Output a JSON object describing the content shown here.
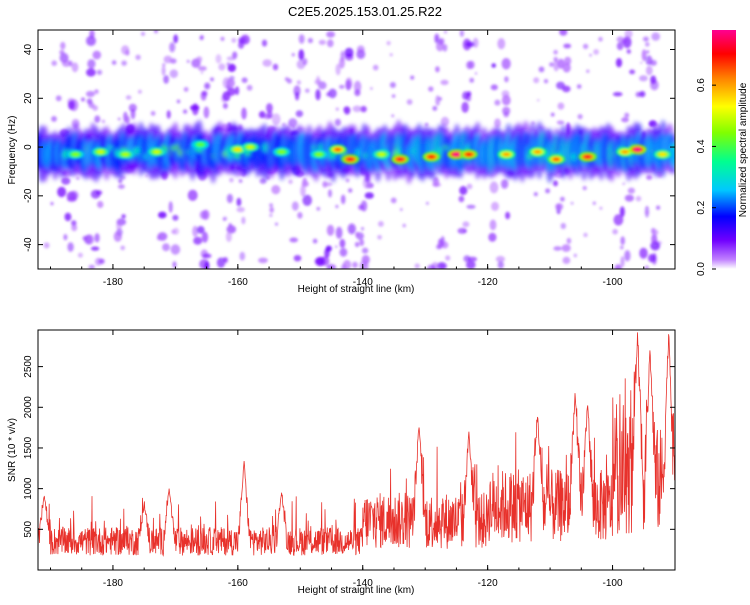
{
  "title": "C2E5.2025.153.01.25.R22",
  "chart_data": [
    {
      "type": "heatmap",
      "name": "spectrogram",
      "xlabel": "Height of straight line (km)",
      "ylabel": "Frequency (Hz)",
      "xlim": [
        -192,
        -90
      ],
      "ylim": [
        -50,
        48
      ],
      "xticks": [
        -180,
        -160,
        -140,
        -120,
        -100
      ],
      "yticks": [
        -40,
        -20,
        0,
        20,
        40
      ],
      "colorbar": {
        "label": "Normalized spectral amplitude",
        "range": [
          0,
          0.78
        ],
        "ticks": [
          0.0,
          0.2,
          0.4,
          0.6
        ],
        "tick_labels": [
          "0.0",
          "0.2",
          "0.4",
          "0.6"
        ],
        "colors": [
          "#ffffff",
          "#c080ff",
          "#7000ff",
          "#0000ff",
          "#00ffff",
          "#00ff60",
          "#ffff00",
          "#ff8000",
          "#ff0000",
          "#ff0090"
        ]
      },
      "band": {
        "center_hz": -2,
        "half_width_hz": 6,
        "trend": "amplitude increases slightly toward -140 to -95 km"
      },
      "hotspots": [
        {
          "x": -186,
          "y": -3,
          "v": 0.45
        },
        {
          "x": -182,
          "y": -2,
          "v": 0.5
        },
        {
          "x": -178,
          "y": -3,
          "v": 0.48
        },
        {
          "x": -173,
          "y": -2,
          "v": 0.5
        },
        {
          "x": -166,
          "y": 1,
          "v": 0.42
        },
        {
          "x": -160,
          "y": -1,
          "v": 0.55
        },
        {
          "x": -158,
          "y": 0,
          "v": 0.5
        },
        {
          "x": -153,
          "y": -2,
          "v": 0.45
        },
        {
          "x": -147,
          "y": -3,
          "v": 0.45
        },
        {
          "x": -144,
          "y": -1,
          "v": 0.65
        },
        {
          "x": -142,
          "y": -5,
          "v": 0.72
        },
        {
          "x": -137,
          "y": -3,
          "v": 0.5
        },
        {
          "x": -134,
          "y": -5,
          "v": 0.72
        },
        {
          "x": -129,
          "y": -4,
          "v": 0.7
        },
        {
          "x": -125,
          "y": -3,
          "v": 0.78
        },
        {
          "x": -123,
          "y": -3,
          "v": 0.7
        },
        {
          "x": -117,
          "y": -3,
          "v": 0.6
        },
        {
          "x": -112,
          "y": -2,
          "v": 0.6
        },
        {
          "x": -109,
          "y": -5,
          "v": 0.65
        },
        {
          "x": -104,
          "y": -4,
          "v": 0.72
        },
        {
          "x": -98,
          "y": -2,
          "v": 0.6
        },
        {
          "x": -96,
          "y": -1,
          "v": 0.78
        },
        {
          "x": -92,
          "y": -3,
          "v": 0.55
        }
      ],
      "noise_columns_km": [
        -187,
        -183,
        -178,
        -171,
        -166,
        -162,
        -160,
        -155,
        -150,
        -146,
        -143,
        -140,
        -128,
        -123,
        -118,
        -108,
        -98,
        -94
      ]
    },
    {
      "type": "line",
      "name": "snr",
      "xlabel": "Height of straight line (km)",
      "ylabel": "SNR (10 * v/v)",
      "xlim": [
        -192,
        -90
      ],
      "ylim": [
        0,
        2950
      ],
      "xticks": [
        -180,
        -160,
        -140,
        -120,
        -100
      ],
      "yticks": [
        500,
        1000,
        1500,
        2000,
        2500
      ],
      "color": "#e8312b",
      "baseline_segments": [
        {
          "x": [
            -192,
            -140
          ],
          "mean": 300,
          "amp": 350
        },
        {
          "x": [
            -140,
            -120
          ],
          "mean": 500,
          "amp": 700
        },
        {
          "x": [
            -120,
            -100
          ],
          "mean": 650,
          "amp": 900
        },
        {
          "x": [
            -100,
            -90
          ],
          "mean": 900,
          "amp": 1300
        }
      ],
      "peaks": [
        {
          "x": -191,
          "y": 920
        },
        {
          "x": -175,
          "y": 800
        },
        {
          "x": -171,
          "y": 1000
        },
        {
          "x": -159,
          "y": 1340
        },
        {
          "x": -153,
          "y": 950
        },
        {
          "x": -131,
          "y": 1780
        },
        {
          "x": -123,
          "y": 1700
        },
        {
          "x": -112,
          "y": 1900
        },
        {
          "x": -106,
          "y": 2200
        },
        {
          "x": -104,
          "y": 2060
        },
        {
          "x": -96,
          "y": 2920
        },
        {
          "x": -94,
          "y": 2700
        },
        {
          "x": -91,
          "y": 2930
        }
      ]
    }
  ]
}
